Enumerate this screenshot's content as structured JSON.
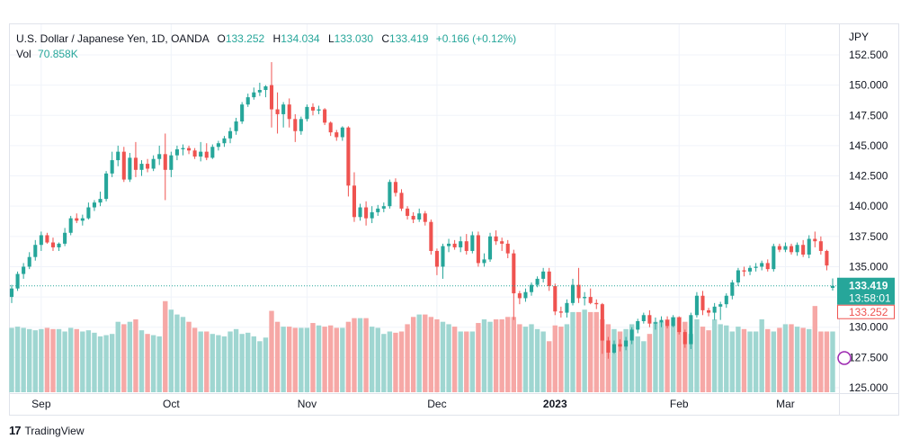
{
  "header": {
    "symbol": "U.S. Dollar / Japanese Yen, 1D, OANDA",
    "open_label": "O",
    "open": "133.252",
    "high_label": "H",
    "high": "134.034",
    "low_label": "L",
    "low": "133.030",
    "close_label": "C",
    "close": "133.419",
    "change": "+0.166 (+0.12%)"
  },
  "volume_legend": {
    "label": "Vol",
    "value": "70.858K"
  },
  "axis": {
    "currency": "JPY"
  },
  "price_tags": {
    "last_price": "133.419",
    "countdown": "13:58:01",
    "open_price": "133.252"
  },
  "footer": {
    "brand": "TradingView",
    "logo": "17"
  },
  "colors": {
    "up": "#26a69a",
    "down": "#ef5350",
    "vol_up": "#9fd6d1",
    "vol_down": "#f6a8a6",
    "grid": "#f0f3fa"
  },
  "chart_data": {
    "type": "candlestick",
    "yaxis": {
      "min": 125,
      "max": 152.5,
      "ticks": [
        "152.500",
        "150.000",
        "147.500",
        "145.000",
        "142.500",
        "140.000",
        "137.500",
        "135.000",
        "132.500",
        "130.000",
        "127.500",
        "125.000"
      ]
    },
    "xaxis": {
      "ticks": [
        {
          "label": "Sep",
          "index": 5
        },
        {
          "label": "Oct",
          "index": 27
        },
        {
          "label": "Nov",
          "index": 50
        },
        {
          "label": "Dec",
          "index": 72
        },
        {
          "label": "2023",
          "index": 92
        },
        {
          "label": "Feb",
          "index": 113
        },
        {
          "label": "Mar",
          "index": 131
        }
      ]
    },
    "candles": [
      [
        132.5,
        133.5,
        132.0,
        133.2
      ],
      [
        133.2,
        134.6,
        133.0,
        134.4
      ],
      [
        134.4,
        135.3,
        134.0,
        135.0
      ],
      [
        135.0,
        136.2,
        134.8,
        135.8
      ],
      [
        135.8,
        137.2,
        135.5,
        136.8
      ],
      [
        136.8,
        137.9,
        136.3,
        137.6
      ],
      [
        137.6,
        137.8,
        136.9,
        137.0
      ],
      [
        137.0,
        137.4,
        136.3,
        136.6
      ],
      [
        136.6,
        137.0,
        136.3,
        136.9
      ],
      [
        136.9,
        138.2,
        136.7,
        137.8
      ],
      [
        137.8,
        139.2,
        137.6,
        139.0
      ],
      [
        139.0,
        139.4,
        138.6,
        138.8
      ],
      [
        138.8,
        139.3,
        138.4,
        139.0
      ],
      [
        139.0,
        140.3,
        138.9,
        139.9
      ],
      [
        139.9,
        140.5,
        139.6,
        140.3
      ],
      [
        140.3,
        141.2,
        140.0,
        140.6
      ],
      [
        140.6,
        142.9,
        140.4,
        142.7
      ],
      [
        142.7,
        144.5,
        142.4,
        143.8
      ],
      [
        143.8,
        145.0,
        143.3,
        144.5
      ],
      [
        144.5,
        144.9,
        142.0,
        142.2
      ],
      [
        142.2,
        144.4,
        142.0,
        144.0
      ],
      [
        144.0,
        145.3,
        142.4,
        143.0
      ],
      [
        143.0,
        143.8,
        142.5,
        143.5
      ],
      [
        143.5,
        143.9,
        142.8,
        143.1
      ],
      [
        143.1,
        144.2,
        142.9,
        143.9
      ],
      [
        143.9,
        145.0,
        143.4,
        144.3
      ],
      [
        144.3,
        146.0,
        140.5,
        143.0
      ],
      [
        143.0,
        144.5,
        142.4,
        144.2
      ],
      [
        144.2,
        145.0,
        143.8,
        144.7
      ],
      [
        144.7,
        145.1,
        144.2,
        144.8
      ],
      [
        144.8,
        145.0,
        144.3,
        144.6
      ],
      [
        144.6,
        144.8,
        143.9,
        144.1
      ],
      [
        144.1,
        145.3,
        143.7,
        144.5
      ],
      [
        144.5,
        145.2,
        143.8,
        144.0
      ],
      [
        144.0,
        145.1,
        143.9,
        144.9
      ],
      [
        144.9,
        145.4,
        144.6,
        145.2
      ],
      [
        145.2,
        145.8,
        144.9,
        145.6
      ],
      [
        145.6,
        146.5,
        145.2,
        146.2
      ],
      [
        146.2,
        147.3,
        145.9,
        147.0
      ],
      [
        147.0,
        148.6,
        146.8,
        148.4
      ],
      [
        148.4,
        149.3,
        148.2,
        149.0
      ],
      [
        149.0,
        149.8,
        148.8,
        149.4
      ],
      [
        149.4,
        150.2,
        149.1,
        149.6
      ],
      [
        149.6,
        150.0,
        149.0,
        149.9
      ],
      [
        150.0,
        151.9,
        146.5,
        148.0
      ],
      [
        148.0,
        149.4,
        146.0,
        147.6
      ],
      [
        147.6,
        148.6,
        146.5,
        148.4
      ],
      [
        148.4,
        148.9,
        146.5,
        147.2
      ],
      [
        147.2,
        147.6,
        145.3,
        146.2
      ],
      [
        146.2,
        147.4,
        145.9,
        147.2
      ],
      [
        147.2,
        148.4,
        147.0,
        148.2
      ],
      [
        148.2,
        148.5,
        147.5,
        147.9
      ],
      [
        147.9,
        148.3,
        147.6,
        148.0
      ],
      [
        148.0,
        148.1,
        146.7,
        146.9
      ],
      [
        146.9,
        147.0,
        145.8,
        146.1
      ],
      [
        146.1,
        146.3,
        145.4,
        145.7
      ],
      [
        145.7,
        146.6,
        145.4,
        146.5
      ],
      [
        146.5,
        146.6,
        140.8,
        141.7
      ],
      [
        141.7,
        142.8,
        138.7,
        139.1
      ],
      [
        139.1,
        140.2,
        138.8,
        139.9
      ],
      [
        139.9,
        140.4,
        138.4,
        139.0
      ],
      [
        139.0,
        140.0,
        138.6,
        139.5
      ],
      [
        139.5,
        140.1,
        139.2,
        139.8
      ],
      [
        139.8,
        140.3,
        139.5,
        140.0
      ],
      [
        140.0,
        142.2,
        139.8,
        142.0
      ],
      [
        142.0,
        142.3,
        140.8,
        141.1
      ],
      [
        141.1,
        141.4,
        139.6,
        139.8
      ],
      [
        139.8,
        140.0,
        138.9,
        139.2
      ],
      [
        139.2,
        139.5,
        138.6,
        138.9
      ],
      [
        138.9,
        139.8,
        138.7,
        139.4
      ],
      [
        139.4,
        139.6,
        138.4,
        138.7
      ],
      [
        138.7,
        138.9,
        136.0,
        136.3
      ],
      [
        136.3,
        136.5,
        134.3,
        135.0
      ],
      [
        135.0,
        136.9,
        134.0,
        136.7
      ],
      [
        136.7,
        137.3,
        136.2,
        136.9
      ],
      [
        136.9,
        137.2,
        136.4,
        136.6
      ],
      [
        136.6,
        137.5,
        136.2,
        137.1
      ],
      [
        137.1,
        137.7,
        136.0,
        136.3
      ],
      [
        136.3,
        137.9,
        136.1,
        137.6
      ],
      [
        137.6,
        137.9,
        135.0,
        135.3
      ],
      [
        135.3,
        136.1,
        135.0,
        135.6
      ],
      [
        135.6,
        137.8,
        135.4,
        137.5
      ],
      [
        137.5,
        138.0,
        136.8,
        137.1
      ],
      [
        137.1,
        137.4,
        136.3,
        136.9
      ],
      [
        136.9,
        137.2,
        135.7,
        136.1
      ],
      [
        136.1,
        136.4,
        130.6,
        132.8
      ],
      [
        132.8,
        133.0,
        131.9,
        132.4
      ],
      [
        132.4,
        133.2,
        132.1,
        132.9
      ],
      [
        132.9,
        133.7,
        132.6,
        133.5
      ],
      [
        133.5,
        134.2,
        133.3,
        134.0
      ],
      [
        134.0,
        134.9,
        133.7,
        134.6
      ],
      [
        134.6,
        134.9,
        133.0,
        133.4
      ],
      [
        133.4,
        133.6,
        131.0,
        131.3
      ],
      [
        131.3,
        131.7,
        130.8,
        131.2
      ],
      [
        131.2,
        132.3,
        130.8,
        132.0
      ],
      [
        132.0,
        134.0,
        131.8,
        133.5
      ],
      [
        133.5,
        134.9,
        132.0,
        132.4
      ],
      [
        132.4,
        132.9,
        131.8,
        132.5
      ],
      [
        132.5,
        133.2,
        131.9,
        132.0
      ],
      [
        132.0,
        132.3,
        131.5,
        131.9
      ],
      [
        131.9,
        132.0,
        127.8,
        128.9
      ],
      [
        128.9,
        129.2,
        127.4,
        127.9
      ],
      [
        127.9,
        128.9,
        127.8,
        128.6
      ],
      [
        128.6,
        129.0,
        128.0,
        128.4
      ],
      [
        128.4,
        129.2,
        128.1,
        128.9
      ],
      [
        128.9,
        130.0,
        128.6,
        129.8
      ],
      [
        129.8,
        130.7,
        129.5,
        130.5
      ],
      [
        130.5,
        131.2,
        130.3,
        131.0
      ],
      [
        131.0,
        131.4,
        130.0,
        130.3
      ],
      [
        130.3,
        130.8,
        129.8,
        130.4
      ],
      [
        130.4,
        130.9,
        130.0,
        130.6
      ],
      [
        130.6,
        130.9,
        129.9,
        130.1
      ],
      [
        130.1,
        131.0,
        130.0,
        130.8
      ],
      [
        130.8,
        130.9,
        129.4,
        129.6
      ],
      [
        129.6,
        129.8,
        128.3,
        128.6
      ],
      [
        128.6,
        131.2,
        128.2,
        131.0
      ],
      [
        131.0,
        132.9,
        130.8,
        132.6
      ],
      [
        132.6,
        133.0,
        131.0,
        131.4
      ],
      [
        131.4,
        131.6,
        130.9,
        131.2
      ],
      [
        131.2,
        132.0,
        130.6,
        131.7
      ],
      [
        131.7,
        132.1,
        130.6,
        131.9
      ],
      [
        131.9,
        132.8,
        131.6,
        132.6
      ],
      [
        132.6,
        133.9,
        132.3,
        133.7
      ],
      [
        133.7,
        134.9,
        133.4,
        134.7
      ],
      [
        134.7,
        135.0,
        134.2,
        134.6
      ],
      [
        134.6,
        135.1,
        134.3,
        134.9
      ],
      [
        134.9,
        135.3,
        134.6,
        135.0
      ],
      [
        135.0,
        135.5,
        134.7,
        135.3
      ],
      [
        135.3,
        135.6,
        134.6,
        134.8
      ],
      [
        134.8,
        136.9,
        134.6,
        136.7
      ],
      [
        136.7,
        136.9,
        136.2,
        136.4
      ],
      [
        136.4,
        137.0,
        136.2,
        136.7
      ],
      [
        136.7,
        136.9,
        136.0,
        136.2
      ],
      [
        136.2,
        137.0,
        135.9,
        136.8
      ],
      [
        136.8,
        137.2,
        135.8,
        136.0
      ],
      [
        136.0,
        137.6,
        135.7,
        137.3
      ],
      [
        137.3,
        137.9,
        136.6,
        137.1
      ],
      [
        137.1,
        137.5,
        136.0,
        136.3
      ],
      [
        136.3,
        136.4,
        134.7,
        135.1
      ],
      [
        133.252,
        134.034,
        133.03,
        133.419
      ]
    ],
    "volumes_k": [
      53,
      54,
      53,
      52,
      51,
      52,
      53,
      52,
      52,
      50,
      53,
      52,
      50,
      51,
      49,
      46,
      47,
      48,
      58,
      56,
      58,
      60,
      51,
      48,
      47,
      46,
      75,
      68,
      64,
      62,
      58,
      53,
      50,
      50,
      48,
      47,
      46,
      50,
      52,
      48,
      49,
      46,
      42,
      45,
      67,
      58,
      54,
      54,
      53,
      53,
      53,
      57,
      55,
      54,
      55,
      53,
      53,
      58,
      61,
      61,
      61,
      54,
      53,
      48,
      50,
      49,
      50,
      56,
      62,
      64,
      64,
      62,
      60,
      58,
      56,
      54,
      50,
      50,
      50,
      57,
      60,
      58,
      60,
      60,
      62,
      62,
      56,
      54,
      56,
      52,
      50,
      42,
      55,
      54,
      56,
      66,
      66,
      68,
      66,
      66,
      60,
      56,
      52,
      50,
      52,
      56,
      46,
      42,
      48,
      58,
      58,
      60,
      62,
      62,
      58,
      48,
      60,
      54,
      51,
      60,
      56,
      55,
      50,
      54,
      52,
      50,
      50,
      60,
      52,
      50,
      53,
      56,
      56,
      54,
      53,
      52,
      71
    ]
  }
}
